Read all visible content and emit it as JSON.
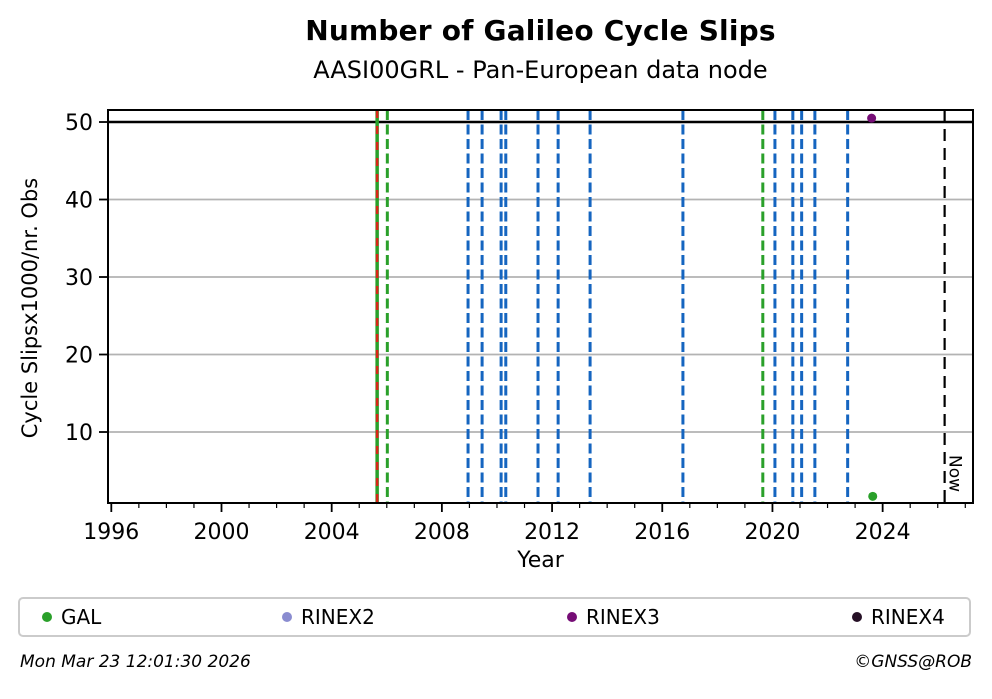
{
  "figure": {
    "title": "Number of Galileo Cycle Slips",
    "subtitle": "AASI00GRL - Pan-European data node",
    "footer_left": "Mon Mar 23 12:01:30 2026",
    "footer_right": "©GNSS@ROB"
  },
  "chart_data": {
    "type": "scatter",
    "title": "Number of Galileo Cycle Slips",
    "subtitle": "AASI00GRL - Pan-European data node",
    "xlabel": "Year",
    "ylabel": "Cycle Slipsx1000/nr. Obs",
    "xlim": [
      1995.88,
      2027.28
    ],
    "ylim": [
      0.84,
      51.55
    ],
    "xticks": [
      1996,
      2000,
      2004,
      2008,
      2012,
      2016,
      2020,
      2024
    ],
    "x_minor_step": 1,
    "yticks": [
      10,
      20,
      30,
      40,
      50
    ],
    "grid_y": [
      10,
      20,
      30,
      40
    ],
    "grid_color": "#b3b3b3",
    "hlines": [
      {
        "y": 50,
        "color": "#000000",
        "width": 2.5
      }
    ],
    "event_lines": [
      {
        "x": 2005.65,
        "color": "#2aa02a",
        "style": "solid",
        "width": 3.5
      },
      {
        "x": 2005.65,
        "color": "#d92518",
        "style": "dashed",
        "width": 2.6,
        "dash": "8 8"
      },
      {
        "x": 2006.02,
        "color": "#2aa02a",
        "style": "dashed",
        "width": 3
      },
      {
        "x": 2008.95,
        "color": "#1565c0",
        "style": "dashed",
        "width": 3
      },
      {
        "x": 2009.46,
        "color": "#1565c0",
        "style": "dashed",
        "width": 3
      },
      {
        "x": 2010.15,
        "color": "#1565c0",
        "style": "dashed",
        "width": 3
      },
      {
        "x": 2010.32,
        "color": "#1565c0",
        "style": "dashed",
        "width": 3
      },
      {
        "x": 2011.49,
        "color": "#1565c0",
        "style": "dashed",
        "width": 3
      },
      {
        "x": 2012.22,
        "color": "#1565c0",
        "style": "dashed",
        "width": 3
      },
      {
        "x": 2013.38,
        "color": "#1565c0",
        "style": "dashed",
        "width": 3
      },
      {
        "x": 2016.75,
        "color": "#1565c0",
        "style": "dashed",
        "width": 3
      },
      {
        "x": 2019.65,
        "color": "#2aa02a",
        "style": "dashed",
        "width": 3
      },
      {
        "x": 2020.09,
        "color": "#1565c0",
        "style": "dashed",
        "width": 3
      },
      {
        "x": 2020.74,
        "color": "#1565c0",
        "style": "dashed",
        "width": 3
      },
      {
        "x": 2021.06,
        "color": "#1565c0",
        "style": "dashed",
        "width": 3
      },
      {
        "x": 2021.54,
        "color": "#1565c0",
        "style": "dashed",
        "width": 3
      },
      {
        "x": 2022.73,
        "color": "#1565c0",
        "style": "dashed",
        "width": 3
      }
    ],
    "now_line": {
      "x": 2026.25,
      "label": "Now",
      "color": "#000000",
      "width": 2.2,
      "dash": "12 7"
    },
    "series": [
      {
        "name": "GAL",
        "color": "#2aa02a",
        "points": [
          {
            "x": 2023.64,
            "y": 1.7
          }
        ]
      },
      {
        "name": "RINEX2",
        "color": "#8a8cd0",
        "points": []
      },
      {
        "name": "RINEX3",
        "color": "#760d76",
        "points": [
          {
            "x": 2023.6,
            "y": 50.5
          }
        ]
      },
      {
        "name": "RINEX4",
        "color": "#261026",
        "points": []
      }
    ],
    "legend_position": "bottom"
  }
}
